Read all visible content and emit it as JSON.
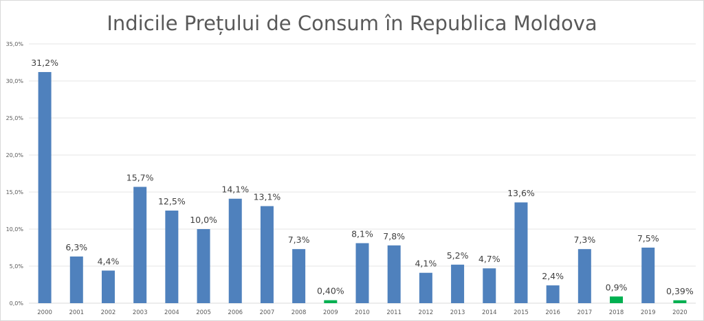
{
  "chart_data": {
    "type": "bar",
    "title": "Indicile Prețului de Consum în Republica Moldova",
    "xlabel": "",
    "ylabel": "",
    "ylim": [
      0,
      35
    ],
    "grid": true,
    "legend": "none",
    "yticks": [
      "0,0%",
      "5,0%",
      "10,0%",
      "15,0%",
      "20,0%",
      "25,0%",
      "30,0%",
      "35,0%"
    ],
    "ytick_values": [
      0,
      5,
      10,
      15,
      20,
      25,
      30,
      35
    ],
    "categories": [
      "2000",
      "2001",
      "2002",
      "2003",
      "2004",
      "2005",
      "2006",
      "2007",
      "2008",
      "2009",
      "2010",
      "2011",
      "2012",
      "2013",
      "2014",
      "2015",
      "2016",
      "2017",
      "2018",
      "2019",
      "2020"
    ],
    "values": [
      31.2,
      6.3,
      4.4,
      15.7,
      12.5,
      10.0,
      14.1,
      13.1,
      7.3,
      0.4,
      8.1,
      7.8,
      4.1,
      5.2,
      4.7,
      13.6,
      2.4,
      7.3,
      0.9,
      7.5,
      0.39
    ],
    "labels": [
      "31,2%",
      "6,3%",
      "4,4%",
      "15,7%",
      "12,5%",
      "10,0%",
      "14,1%",
      "13,1%",
      "7,3%",
      "0,40%",
      "8,1%",
      "7,8%",
      "4,1%",
      "5,2%",
      "4,7%",
      "13,6%",
      "2,4%",
      "7,3%",
      "0,9%",
      "7,5%",
      "0,39%"
    ],
    "highlight": [
      false,
      false,
      false,
      false,
      false,
      false,
      false,
      false,
      false,
      true,
      false,
      false,
      false,
      false,
      false,
      false,
      false,
      false,
      true,
      false,
      true
    ],
    "colors": {
      "bar": "#4f81bd",
      "highlight": "#00b050",
      "grid": "#e6e6e6",
      "axis": "#d9d9d9"
    }
  }
}
